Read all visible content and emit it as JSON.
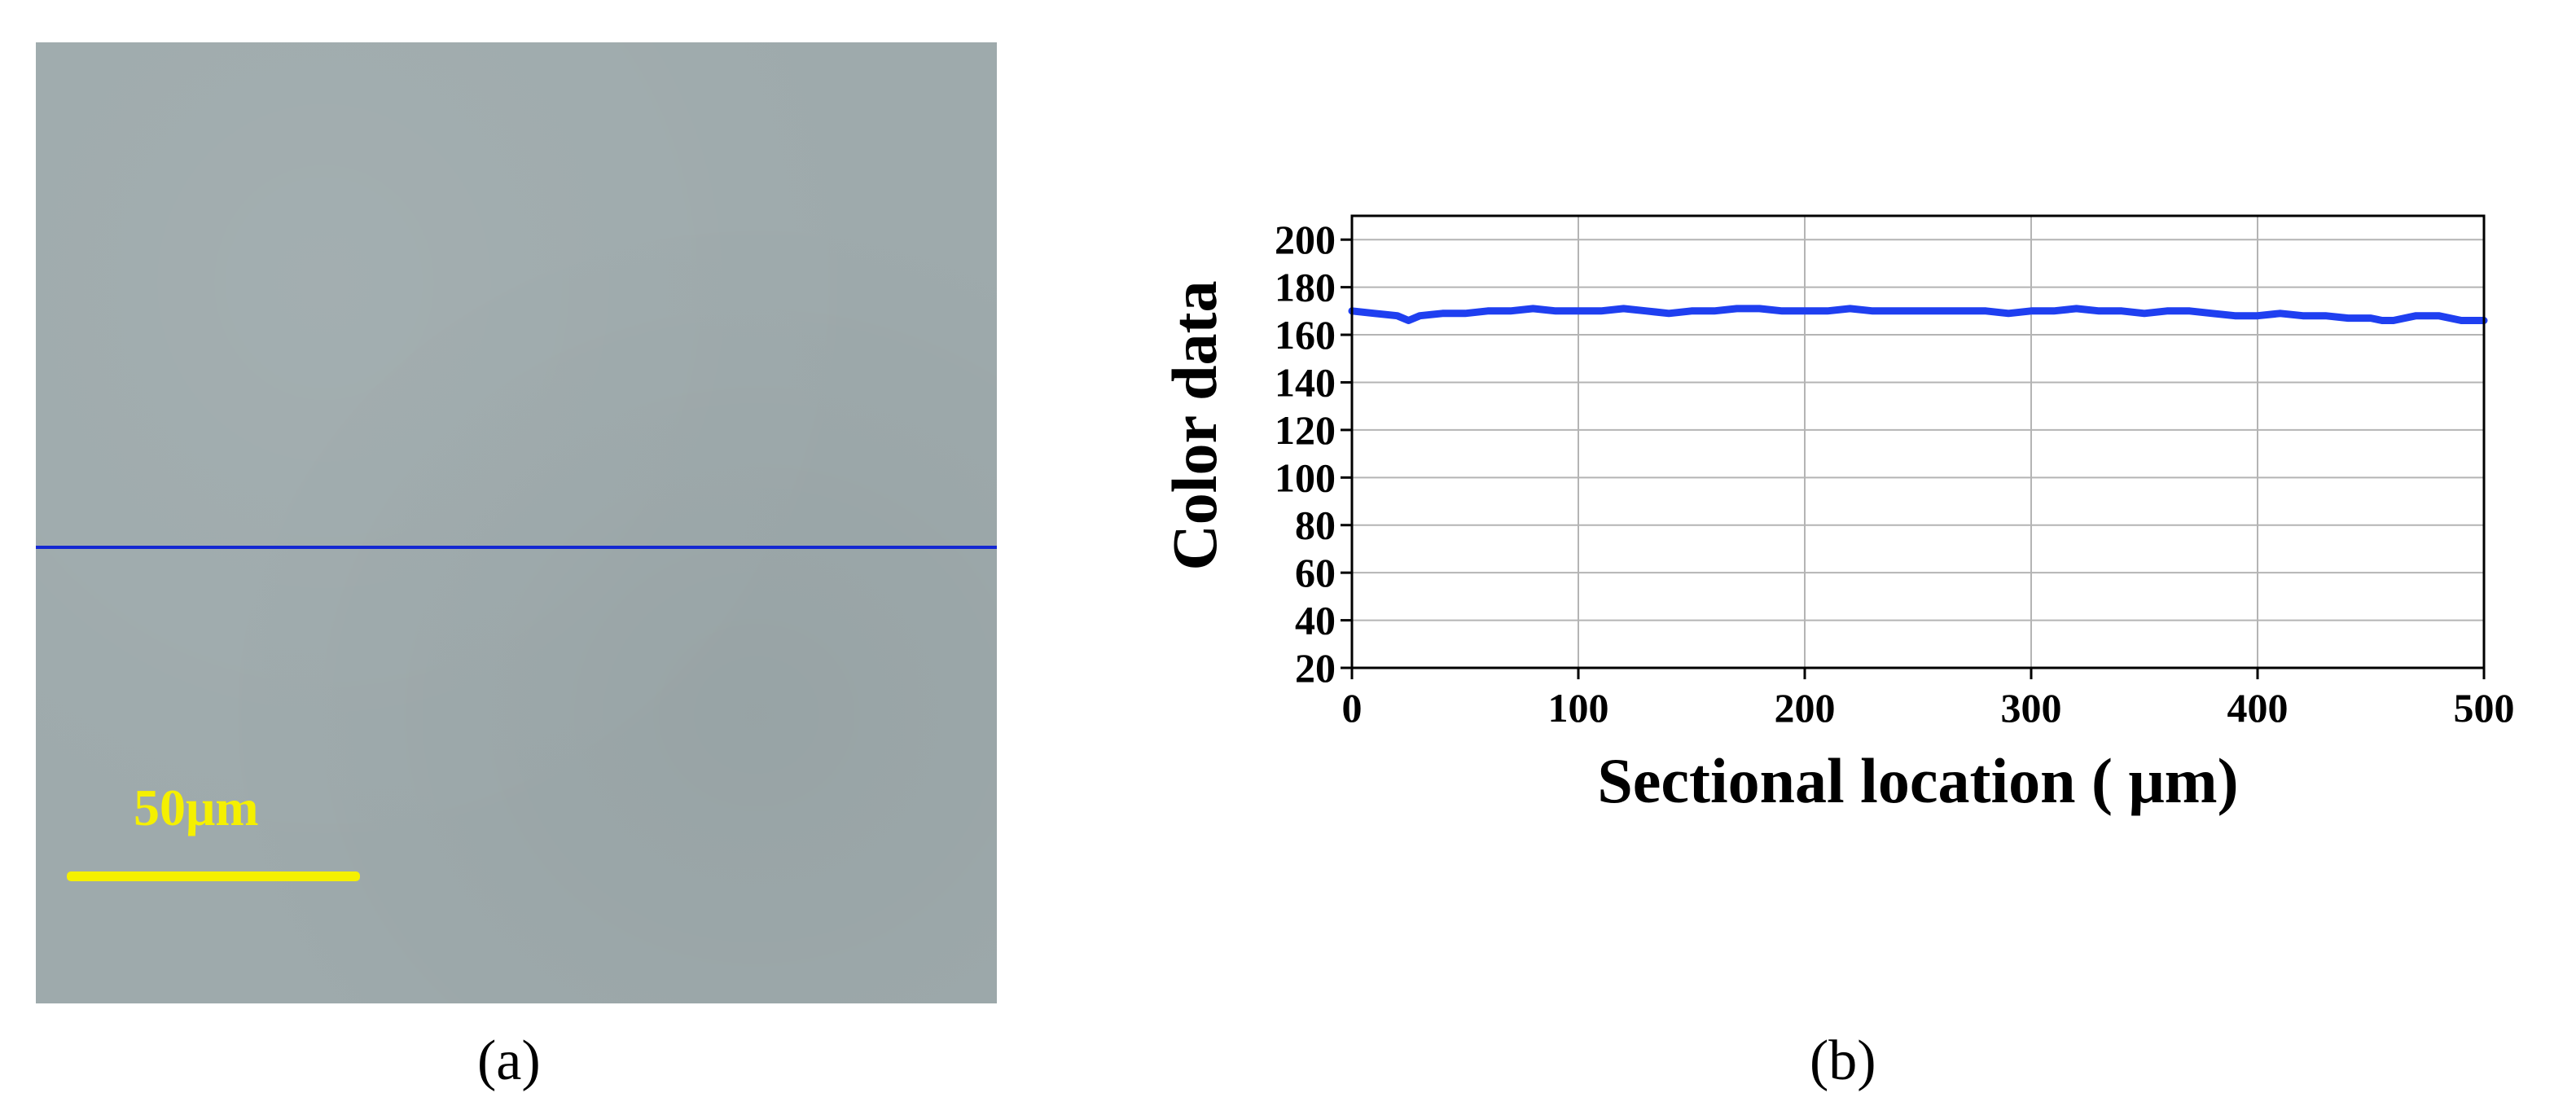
{
  "panels": {
    "a": {
      "label": "(a)",
      "scale_bar_label": "50μm",
      "colors": {
        "image_background": "#9eaaac",
        "scan_line": "#1428d2",
        "scale_bar": "#f5f000"
      }
    },
    "b": {
      "label": "(b)"
    }
  },
  "chart_data": {
    "type": "line",
    "xlabel": "Sectional location ( μm)",
    "ylabel": "Color data",
    "xlim": [
      0,
      500
    ],
    "ylim": [
      20,
      210
    ],
    "xticks": [
      0,
      100,
      200,
      300,
      400,
      500
    ],
    "yticks": [
      20,
      40,
      60,
      80,
      100,
      120,
      140,
      160,
      180,
      200
    ],
    "grid": true,
    "legend": "none",
    "series": [
      {
        "color": "#1f3ff0",
        "x": [
          0,
          10,
          20,
          25,
          30,
          40,
          50,
          60,
          70,
          80,
          90,
          100,
          110,
          120,
          130,
          140,
          150,
          160,
          170,
          180,
          190,
          200,
          210,
          220,
          230,
          240,
          250,
          260,
          270,
          280,
          290,
          300,
          310,
          320,
          330,
          340,
          350,
          360,
          370,
          380,
          390,
          400,
          410,
          420,
          430,
          440,
          450,
          455,
          460,
          470,
          480,
          490,
          500
        ],
        "y": [
          170,
          169,
          168,
          166,
          168,
          169,
          169,
          170,
          170,
          171,
          170,
          170,
          170,
          171,
          170,
          169,
          170,
          170,
          171,
          171,
          170,
          170,
          170,
          171,
          170,
          170,
          170,
          170,
          170,
          170,
          169,
          170,
          170,
          171,
          170,
          170,
          169,
          170,
          170,
          169,
          168,
          168,
          169,
          168,
          168,
          167,
          167,
          166,
          166,
          168,
          168,
          166,
          166
        ]
      }
    ]
  }
}
